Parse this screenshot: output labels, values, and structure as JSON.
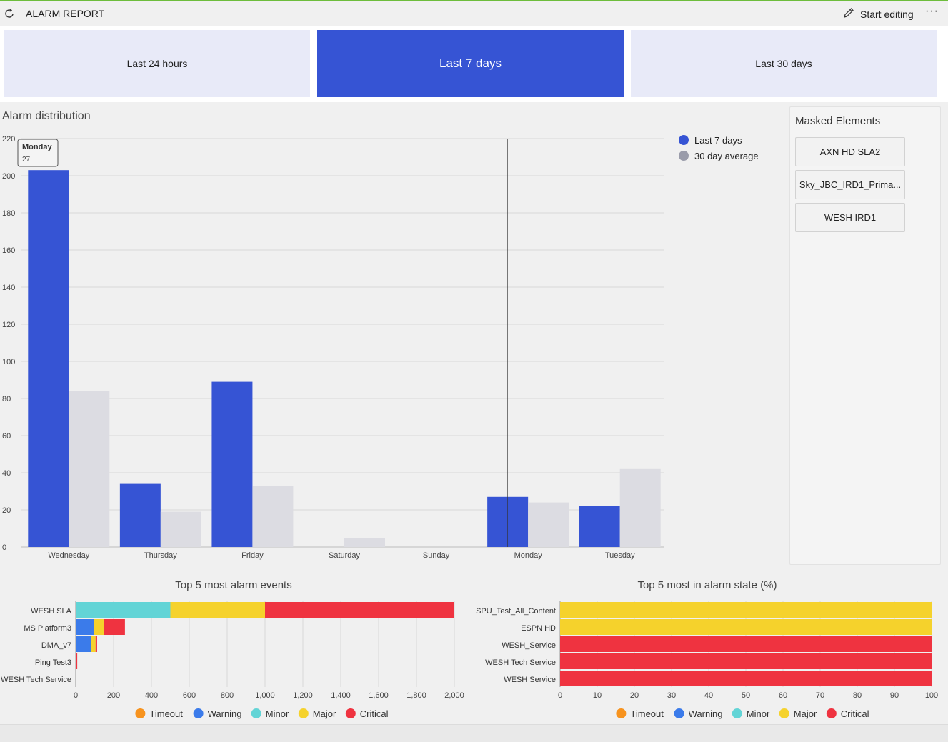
{
  "header": {
    "title": "ALARM REPORT",
    "edit_label": "Start editing",
    "more_label": "···"
  },
  "tabs": [
    {
      "label": "Last 24 hours",
      "active": false
    },
    {
      "label": "Last 7 days",
      "active": true
    },
    {
      "label": "Last 30 days",
      "active": false
    }
  ],
  "masked": {
    "title": "Masked Elements",
    "items": [
      "AXN HD SLA2",
      "Sky_JBC_IRD1_Prima...",
      "WESH IRD1"
    ]
  },
  "colors": {
    "accent": "#3654d4",
    "average": "#dcdce2",
    "timeout": "#f7931e",
    "warning": "#3b7bea",
    "minor": "#62d4d6",
    "major": "#f5d22c",
    "critical": "#ef3340"
  },
  "chart_data": [
    {
      "type": "bar",
      "title": "Alarm distribution",
      "categories": [
        "Wednesday",
        "Thursday",
        "Friday",
        "Saturday",
        "Sunday",
        "Monday",
        "Tuesday"
      ],
      "series": [
        {
          "name": "Last 7 days",
          "values": [
            203,
            34,
            89,
            0,
            0,
            27,
            22
          ]
        },
        {
          "name": "30 day average",
          "values": [
            84,
            19,
            33,
            5,
            0,
            24,
            42
          ]
        }
      ],
      "ylim": [
        0,
        220
      ],
      "yticks": [
        0,
        20,
        40,
        60,
        80,
        100,
        120,
        140,
        160,
        180,
        200,
        220
      ],
      "grid": true,
      "legend": "top-right",
      "tooltip": {
        "label": "Monday",
        "value": "27"
      }
    },
    {
      "type": "bar",
      "orientation": "horizontal",
      "stacked": true,
      "title": "Top 5 most alarm events",
      "categories": [
        "WESH SLA",
        "MS Platform3",
        "DMA_v7",
        "Ping Test3",
        "WESH Tech Service"
      ],
      "series": [
        {
          "name": "Timeout",
          "values": [
            0,
            0,
            0,
            0,
            0
          ]
        },
        {
          "name": "Warning",
          "values": [
            0,
            95,
            80,
            0,
            0
          ]
        },
        {
          "name": "Minor",
          "values": [
            500,
            0,
            0,
            0,
            0
          ]
        },
        {
          "name": "Major",
          "values": [
            500,
            55,
            25,
            0,
            0
          ]
        },
        {
          "name": "Critical",
          "values": [
            1000,
            110,
            8,
            8,
            0
          ]
        }
      ],
      "xlim": [
        0,
        2000
      ],
      "xticks": [
        "0",
        "200",
        "400",
        "600",
        "800",
        "1,000",
        "1,200",
        "1,400",
        "1,600",
        "1,800",
        "2,000"
      ],
      "legend": "bottom"
    },
    {
      "type": "bar",
      "orientation": "horizontal",
      "stacked": true,
      "title": "Top 5 most in alarm state (%)",
      "categories": [
        "SPU_Test_All_Content",
        "ESPN HD",
        "WESH_Service",
        "WESH Tech Service",
        "WESH Service"
      ],
      "series": [
        {
          "name": "Timeout",
          "values": [
            0,
            0,
            0,
            0,
            0
          ]
        },
        {
          "name": "Warning",
          "values": [
            0,
            0,
            0,
            0,
            0
          ]
        },
        {
          "name": "Minor",
          "values": [
            0,
            0,
            0,
            0,
            0
          ]
        },
        {
          "name": "Major",
          "values": [
            100,
            100,
            0,
            0,
            0
          ]
        },
        {
          "name": "Critical",
          "values": [
            0,
            0,
            100,
            100,
            100
          ]
        }
      ],
      "xlim": [
        0,
        100
      ],
      "xticks": [
        "0",
        "10",
        "20",
        "30",
        "40",
        "50",
        "60",
        "70",
        "80",
        "90",
        "100"
      ],
      "legend": "bottom"
    }
  ]
}
